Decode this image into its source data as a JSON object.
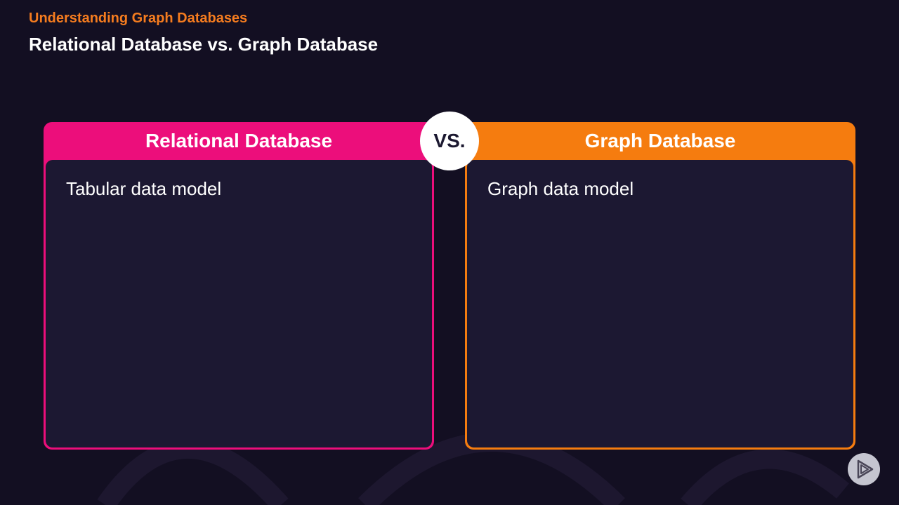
{
  "header": {
    "kicker": "Understanding Graph Databases",
    "title": "Relational Database vs. Graph Database"
  },
  "left_panel": {
    "heading": "Relational Database",
    "text": "Tabular data model",
    "color": "#ec0e7b"
  },
  "right_panel": {
    "heading": "Graph Database",
    "text": "Graph data model",
    "color": "#f57c0f"
  },
  "vs_badge": {
    "label": "VS."
  },
  "branding": {
    "logo_icon": "play-logo-icon"
  },
  "colors": {
    "background": "#130f22",
    "kicker": "#f57c1f",
    "panel_body": "#1c1832"
  }
}
